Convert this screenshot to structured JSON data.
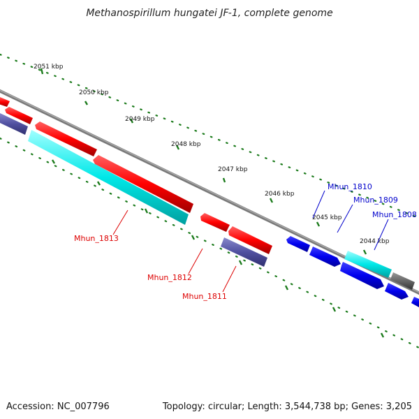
{
  "title": "Methanospirillum hungatei JF-1, complete genome",
  "accession": "Accession: NC_007796",
  "summary": "Topology: circular; Length: 3,544,738 bp; Genes: 3,205",
  "ruler_labels": [
    "2051 kbp",
    "2050 kbp",
    "2049 kbp",
    "2048 kbp",
    "2047 kbp",
    "2046 kbp",
    "2045 kbp",
    "2044 kbp"
  ],
  "genes": [
    {
      "name": "Mhun_1813",
      "color": "#dd0000"
    },
    {
      "name": "Mhun_1812",
      "color": "#dd0000"
    },
    {
      "name": "Mhun_1811",
      "color": "#dd0000"
    },
    {
      "name": "Mhun_1810",
      "color": "#0000cc"
    },
    {
      "name": "Mhun_1809",
      "color": "#0000cc"
    },
    {
      "name": "Mhun_1808",
      "color": "#0000cc"
    }
  ],
  "colors": {
    "forward_red": "#ff0000",
    "cyan": "#00e0e0",
    "slate": "#5050a0",
    "blue": "#0000ee",
    "gray": "#666666",
    "tick_green": "#1a7a1a"
  }
}
